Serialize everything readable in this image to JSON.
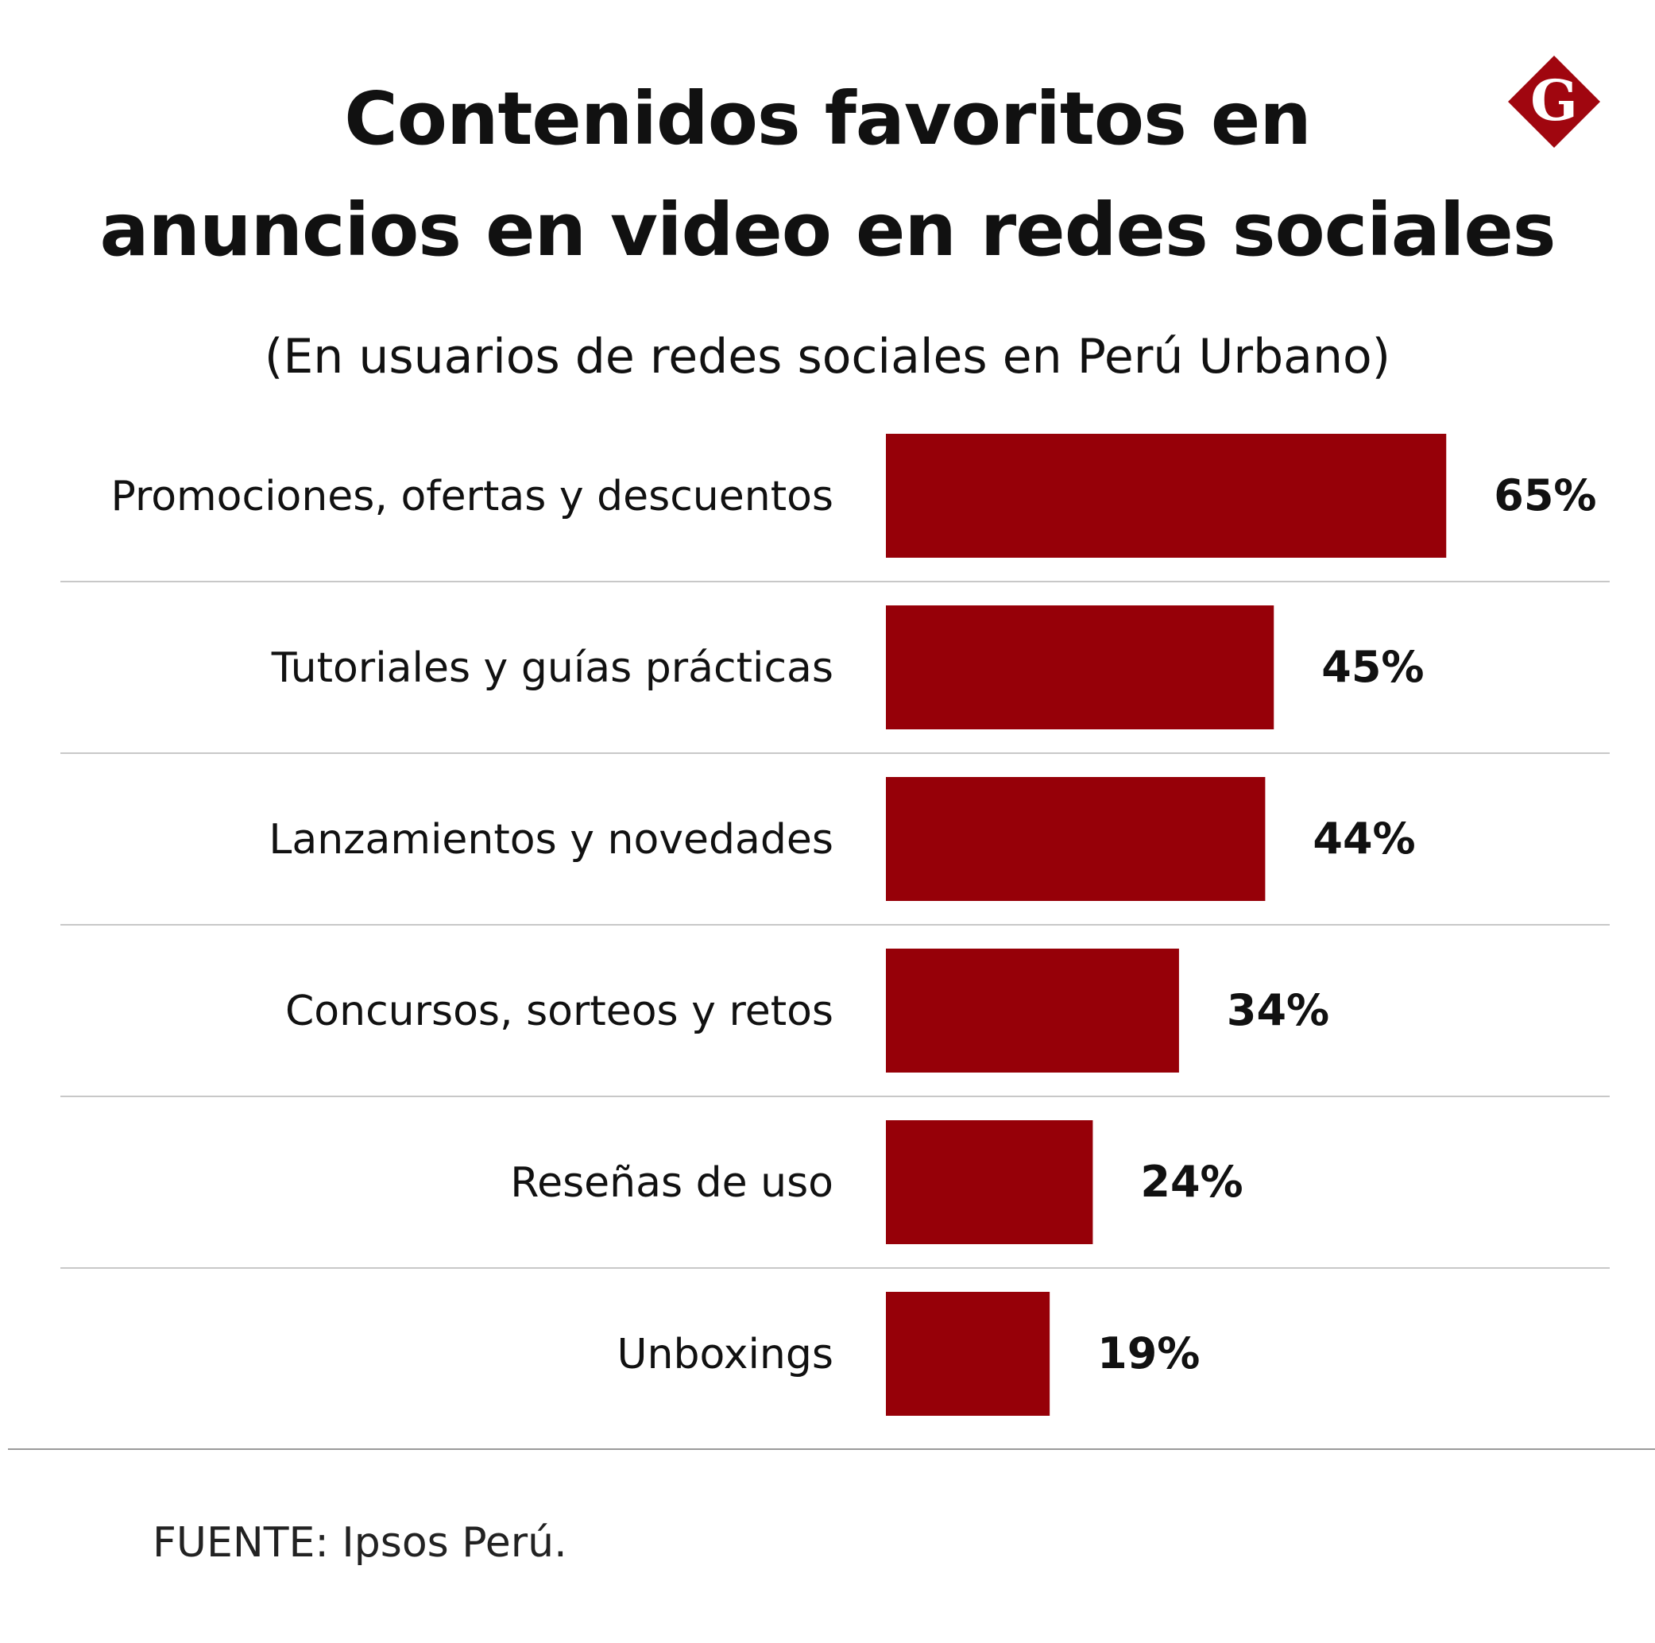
{
  "brand": {
    "logo_letter": "G",
    "logo_color": "#a0060f"
  },
  "header": {
    "title_line_1": "Contenidos favoritos en",
    "title_line_2": "anuncios en video en redes sociales",
    "subtitle": "(En usuarios de redes sociales en Perú Urbano)"
  },
  "chart_data": {
    "type": "bar",
    "orientation": "horizontal",
    "title": "Contenidos favoritos en anuncios en video en redes sociales",
    "subtitle": "(En usuarios de redes sociales en Perú Urbano)",
    "categories": [
      "Promociones, ofertas y descuentos",
      "Tutoriales y guías prácticas",
      "Lanzamientos y novedades",
      "Concursos, sorteos y retos",
      "Reseñas de uso",
      "Unboxings"
    ],
    "values": [
      65,
      45,
      44,
      34,
      24,
      19
    ],
    "value_labels": [
      "65%",
      "45%",
      "44%",
      "34%",
      "24%",
      "19%"
    ],
    "unit": "%",
    "bar_color": "#960008",
    "grid": false,
    "row_separators": true
  },
  "footer": {
    "source": "FUENTE: Ipsos Perú."
  }
}
